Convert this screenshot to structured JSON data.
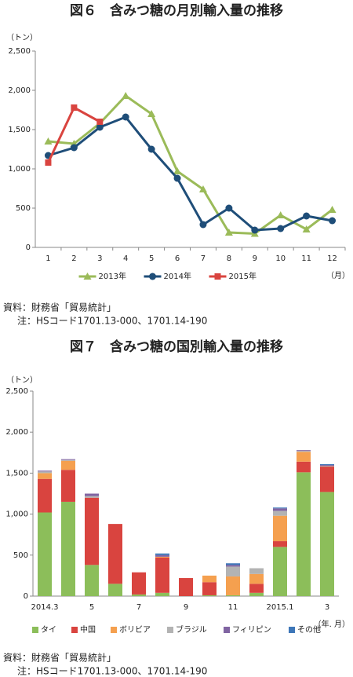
{
  "chart_data": [
    {
      "type": "line",
      "title": "図６　含みつ糖の月別輸入量の推移",
      "y_unit": "（トン）",
      "x_unit": "（月）",
      "categories": [
        "1",
        "2",
        "3",
        "4",
        "5",
        "6",
        "7",
        "8",
        "9",
        "10",
        "11",
        "12"
      ],
      "series": [
        {
          "name": "2013年",
          "color": "#9bbb59",
          "marker": "triangle",
          "values": [
            1350,
            1320,
            1580,
            1930,
            1700,
            970,
            740,
            190,
            175,
            410,
            230,
            480
          ]
        },
        {
          "name": "2014年",
          "color": "#1f4e79",
          "marker": "circle",
          "values": [
            1170,
            1270,
            1530,
            1660,
            1250,
            880,
            290,
            500,
            220,
            240,
            400,
            340
          ]
        },
        {
          "name": "2015年",
          "color": "#d9443f",
          "marker": "square",
          "values": [
            1080,
            1780,
            1600,
            null,
            null,
            null,
            null,
            null,
            null,
            null,
            null,
            null
          ]
        }
      ],
      "ylim": [
        0,
        2500
      ],
      "yticks": [
        0,
        500,
        {
          "value": 1000,
          "label": "1,000"
        },
        {
          "value": 1500,
          "label": "1,500"
        },
        {
          "value": 2000,
          "label": "2,000"
        },
        {
          "value": 2500,
          "label": "2,500"
        }
      ],
      "grid": false,
      "legend": "bottom",
      "source": "資料：財務省「貿易統計」",
      "note": "注：HSコード1701.13-000、1701.14-190"
    },
    {
      "type": "stacked_bar",
      "title": "図７　含みつ糖の国別輸入量の推移",
      "y_unit": "（トン）",
      "x_unit": "（年. 月）",
      "categories": [
        "2014.3",
        null,
        "5",
        null,
        "7",
        null,
        "9",
        null,
        "11",
        null,
        "2015.1",
        null,
        "3"
      ],
      "series": [
        {
          "name": "タイ",
          "color": "#8cbe5a",
          "values": [
            1020,
            1150,
            380,
            150,
            20,
            40,
            0,
            10,
            10,
            40,
            600,
            1510,
            1270
          ]
        },
        {
          "name": "中国",
          "color": "#d9443f",
          "values": [
            410,
            390,
            820,
            730,
            270,
            430,
            220,
            160,
            0,
            110,
            70,
            130,
            310
          ]
        },
        {
          "name": "ボリビア",
          "color": "#f5a04f",
          "values": [
            70,
            110,
            0,
            0,
            0,
            10,
            0,
            80,
            230,
            120,
            310,
            120,
            0
          ]
        },
        {
          "name": "ブラジル",
          "color": "#b3b3b3",
          "values": [
            20,
            10,
            20,
            0,
            0,
            0,
            0,
            0,
            120,
            70,
            60,
            10,
            10
          ]
        },
        {
          "name": "フィリピン",
          "color": "#8064a2",
          "values": [
            10,
            10,
            30,
            0,
            0,
            20,
            0,
            0,
            20,
            0,
            30,
            10,
            10
          ]
        },
        {
          "name": "その他",
          "color": "#3d76b8",
          "values": [
            0,
            0,
            0,
            0,
            0,
            20,
            0,
            0,
            20,
            0,
            10,
            0,
            10
          ]
        }
      ],
      "ylim": [
        0,
        2500
      ],
      "yticks": [
        0,
        500,
        {
          "value": 1000,
          "label": "1,000"
        },
        {
          "value": 1500,
          "label": "1,500"
        },
        {
          "value": 2000,
          "label": "2,000"
        },
        {
          "value": 2500,
          "label": "2,500"
        }
      ],
      "grid": false,
      "legend": "bottom",
      "source": "資料：財務省「貿易統計」",
      "note": "注：HSコード1701.13-000、1701.14-190"
    }
  ]
}
